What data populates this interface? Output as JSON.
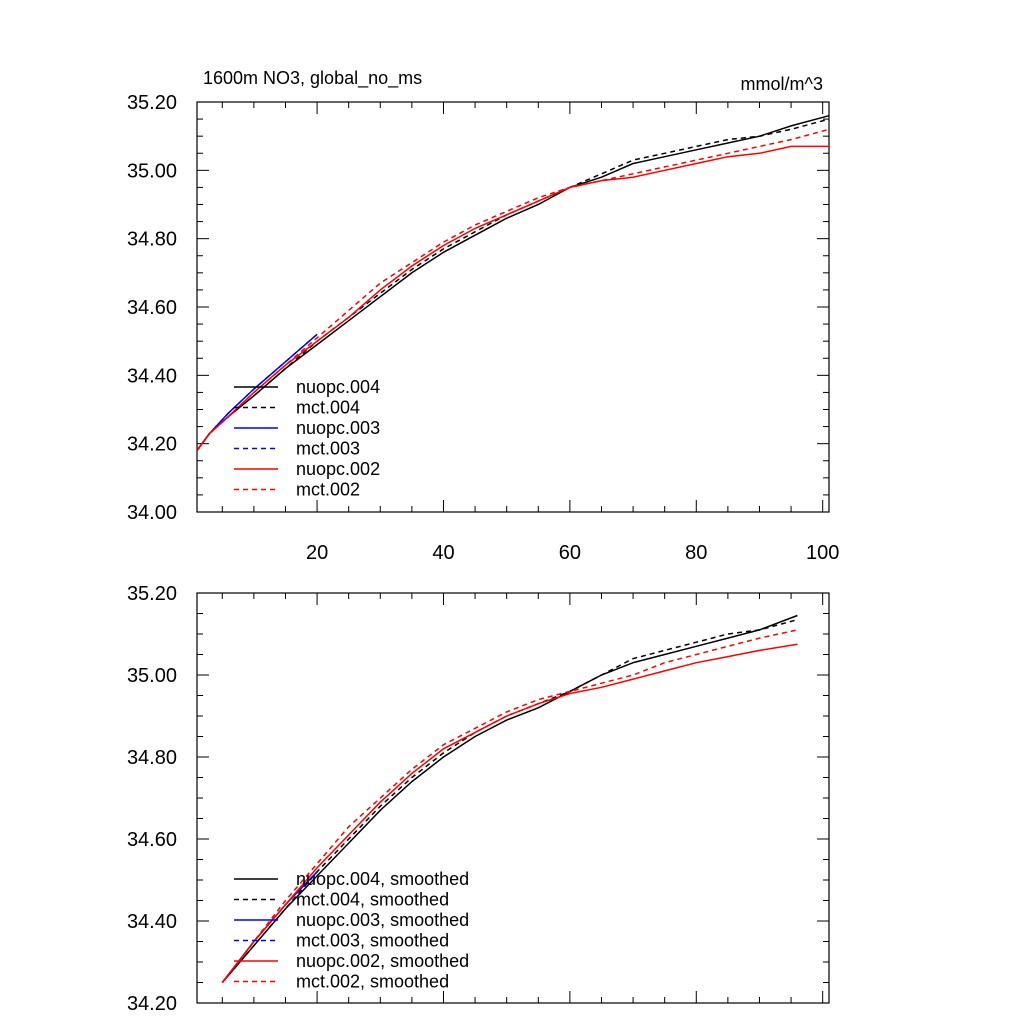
{
  "chart_data": [
    {
      "type": "line",
      "title": "1600m NO3, global_no_ms",
      "units": "mmol/m^3",
      "xlim": [
        1,
        101
      ],
      "ylim": [
        34.0,
        35.2
      ],
      "x_ticks": [
        20,
        40,
        60,
        80,
        100
      ],
      "x_tick_labels": [
        "20",
        "40",
        "60",
        "80",
        "100"
      ],
      "y_ticks": [
        34.0,
        34.2,
        34.4,
        34.6,
        34.8,
        35.0,
        35.2
      ],
      "y_tick_labels": [
        "34.00",
        "34.20",
        "34.40",
        "34.60",
        "34.80",
        "35.00",
        "35.20"
      ],
      "legend_position": "bottom-left",
      "series": [
        {
          "name": "nuopc.004",
          "color": "#000000",
          "dash": "solid",
          "x": [
            1,
            3,
            6,
            10,
            15,
            20,
            25,
            30,
            35,
            40,
            45,
            50,
            55,
            60,
            65,
            70,
            75,
            80,
            85,
            90,
            95,
            101
          ],
          "y": [
            34.18,
            34.23,
            34.28,
            34.34,
            34.42,
            34.49,
            34.56,
            34.63,
            34.7,
            34.76,
            34.81,
            34.86,
            34.9,
            34.95,
            34.98,
            35.02,
            35.04,
            35.06,
            35.08,
            35.1,
            35.13,
            35.16
          ]
        },
        {
          "name": "mct.004",
          "color": "#000000",
          "dash": "dashed",
          "x": [
            1,
            3,
            6,
            10,
            15,
            20,
            25,
            30,
            35,
            40,
            45,
            50,
            55,
            60,
            65,
            70,
            75,
            80,
            85,
            90,
            95,
            101
          ],
          "y": [
            34.18,
            34.23,
            34.28,
            34.34,
            34.42,
            34.5,
            34.57,
            34.64,
            34.71,
            34.77,
            34.82,
            34.87,
            34.91,
            34.95,
            34.99,
            35.03,
            35.05,
            35.07,
            35.09,
            35.1,
            35.12,
            35.15
          ]
        },
        {
          "name": "nuopc.003",
          "color": "#0000ff",
          "dash": "solid",
          "x": [
            1,
            3,
            6,
            10,
            15,
            20
          ],
          "y": [
            34.18,
            34.23,
            34.29,
            34.36,
            34.44,
            34.52
          ]
        },
        {
          "name": "mct.003",
          "color": "#0000ff",
          "dash": "dashed",
          "x": [
            1,
            3,
            6,
            10,
            15,
            20
          ],
          "y": [
            34.18,
            34.23,
            34.29,
            34.36,
            34.44,
            34.52
          ]
        },
        {
          "name": "nuopc.002",
          "color": "#ff0000",
          "dash": "solid",
          "x": [
            1,
            3,
            6,
            10,
            15,
            20,
            25,
            30,
            35,
            40,
            45,
            50,
            55,
            60,
            65,
            70,
            75,
            80,
            85,
            90,
            95,
            101
          ],
          "y": [
            34.18,
            34.23,
            34.28,
            34.35,
            34.43,
            34.5,
            34.57,
            34.65,
            34.72,
            34.78,
            34.83,
            34.87,
            34.91,
            34.95,
            34.97,
            34.98,
            35.0,
            35.02,
            35.04,
            35.05,
            35.07,
            35.07
          ]
        },
        {
          "name": "mct.002",
          "color": "#ff0000",
          "dash": "dashed",
          "x": [
            1,
            3,
            6,
            10,
            15,
            20,
            25,
            30,
            35,
            40,
            45,
            50,
            55,
            60,
            65,
            70,
            75,
            80,
            85,
            90,
            95,
            101
          ],
          "y": [
            34.18,
            34.23,
            34.28,
            34.35,
            34.43,
            34.51,
            34.59,
            34.67,
            34.73,
            34.79,
            34.84,
            34.88,
            34.92,
            34.95,
            34.97,
            34.99,
            35.01,
            35.03,
            35.05,
            35.07,
            35.09,
            35.12
          ]
        }
      ]
    },
    {
      "type": "line",
      "xlim": [
        1,
        101
      ],
      "ylim": [
        34.2,
        35.2
      ],
      "x_ticks": [
        20,
        40,
        60,
        80,
        100
      ],
      "y_ticks": [
        34.2,
        34.4,
        34.6,
        34.8,
        35.0,
        35.2
      ],
      "y_tick_labels": [
        "34.20",
        "34.40",
        "34.60",
        "34.80",
        "35.00",
        "35.20"
      ],
      "legend_position": "bottom-left",
      "series": [
        {
          "name": "nuopc.004, smoothed",
          "color": "#000000",
          "dash": "solid",
          "x": [
            5,
            10,
            15,
            20,
            25,
            30,
            35,
            40,
            45,
            50,
            55,
            60,
            65,
            70,
            75,
            80,
            85,
            90,
            96
          ],
          "y": [
            34.25,
            34.34,
            34.43,
            34.51,
            34.59,
            34.67,
            34.74,
            34.8,
            34.85,
            34.89,
            34.92,
            34.96,
            35.0,
            35.03,
            35.05,
            35.07,
            35.09,
            35.11,
            35.145
          ]
        },
        {
          "name": "mct.004, smoothed",
          "color": "#000000",
          "dash": "dashed",
          "x": [
            5,
            10,
            15,
            20,
            25,
            30,
            35,
            40,
            45,
            50,
            55,
            60,
            65,
            70,
            75,
            80,
            85,
            90,
            96
          ],
          "y": [
            34.25,
            34.34,
            34.43,
            34.52,
            34.6,
            34.68,
            34.75,
            34.81,
            34.86,
            34.9,
            34.93,
            34.96,
            35.0,
            35.04,
            35.06,
            35.08,
            35.1,
            35.11,
            35.135
          ]
        },
        {
          "name": "nuopc.003, smoothed",
          "color": "#0000ff",
          "dash": "solid",
          "x": [
            5,
            10,
            15,
            20
          ],
          "y": [
            34.25,
            34.35,
            34.44,
            34.52
          ]
        },
        {
          "name": "mct.003, smoothed",
          "color": "#0000ff",
          "dash": "dashed",
          "x": [
            5,
            10,
            15,
            20
          ],
          "y": [
            34.25,
            34.35,
            34.44,
            34.52
          ]
        },
        {
          "name": "nuopc.002, smoothed",
          "color": "#ff0000",
          "dash": "solid",
          "x": [
            5,
            10,
            15,
            20,
            25,
            30,
            35,
            40,
            45,
            50,
            55,
            60,
            65,
            70,
            75,
            80,
            85,
            90,
            96
          ],
          "y": [
            34.25,
            34.35,
            34.44,
            34.53,
            34.61,
            34.69,
            34.76,
            34.82,
            34.86,
            34.9,
            34.93,
            34.955,
            34.97,
            34.99,
            35.01,
            35.03,
            35.045,
            35.06,
            35.075
          ]
        },
        {
          "name": "mct.002, smoothed",
          "color": "#ff0000",
          "dash": "dashed",
          "x": [
            5,
            10,
            15,
            20,
            25,
            30,
            35,
            40,
            45,
            50,
            55,
            60,
            65,
            70,
            75,
            80,
            85,
            90,
            96
          ],
          "y": [
            34.25,
            34.35,
            34.45,
            34.54,
            34.63,
            34.7,
            34.77,
            34.83,
            34.87,
            34.91,
            34.94,
            34.96,
            34.98,
            35.0,
            35.03,
            35.05,
            35.07,
            35.09,
            35.11
          ]
        }
      ]
    }
  ]
}
